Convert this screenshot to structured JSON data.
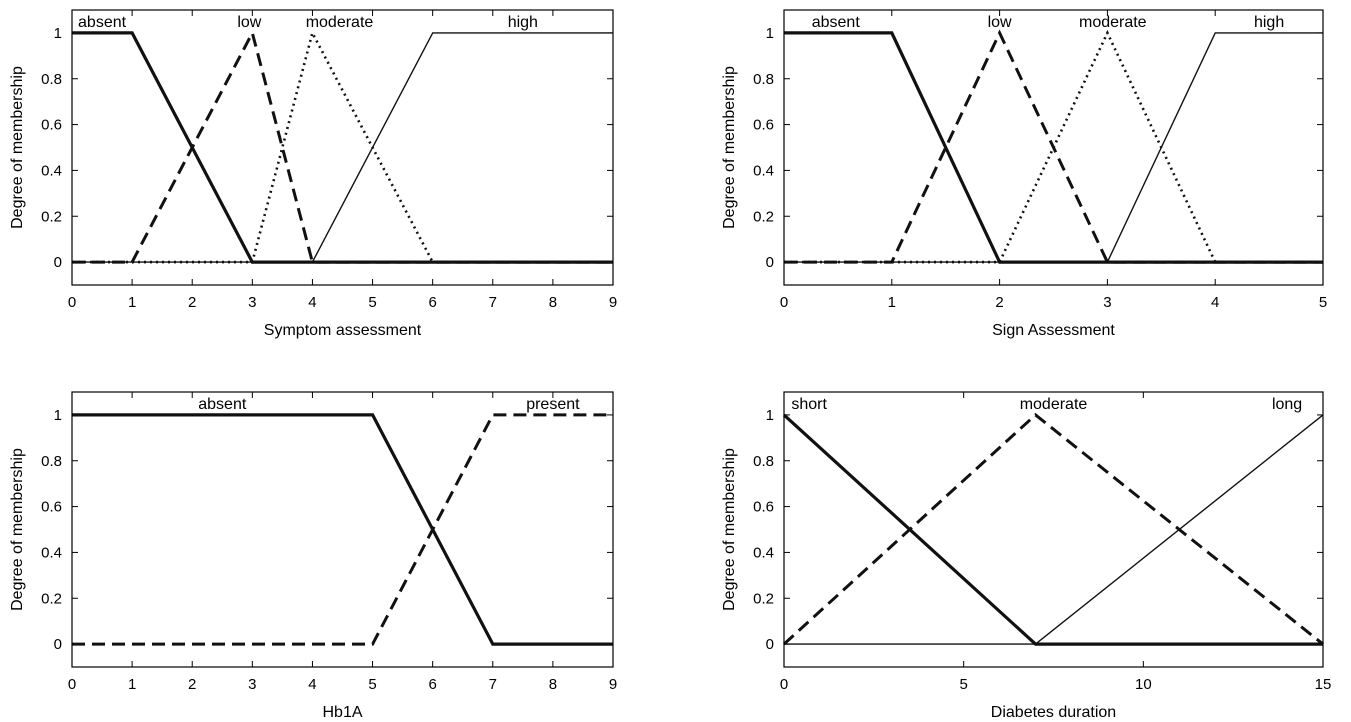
{
  "chart_data": [
    {
      "type": "line",
      "xlabel": "Symptom assessment",
      "ylabel": "Degree of membership",
      "xlim": [
        0,
        9
      ],
      "ylim": [
        -0.1,
        1.1
      ],
      "xticks": [
        0,
        1,
        2,
        3,
        4,
        5,
        6,
        7,
        8,
        9
      ],
      "yticks": [
        0,
        0.2,
        0.4,
        0.6,
        0.8,
        1
      ],
      "series": [
        {
          "name": "absent",
          "style": "thick-solid",
          "x": [
            0,
            1,
            3,
            9
          ],
          "y": [
            1,
            1,
            0,
            0
          ]
        },
        {
          "name": "low",
          "style": "dashed",
          "x": [
            0,
            1,
            3,
            4,
            9
          ],
          "y": [
            0,
            0,
            1,
            0,
            0
          ]
        },
        {
          "name": "moderate",
          "style": "dotted",
          "x": [
            0,
            3,
            4,
            6,
            9
          ],
          "y": [
            0,
            0,
            1,
            0,
            0
          ]
        },
        {
          "name": "high",
          "style": "thin-solid",
          "x": [
            0,
            4,
            6,
            9
          ],
          "y": [
            0,
            0,
            1,
            1
          ]
        }
      ],
      "set_labels": [
        {
          "text": "absent",
          "x": 0.5
        },
        {
          "text": "low",
          "x": 2.95
        },
        {
          "text": "moderate",
          "x": 4.45
        },
        {
          "text": "high",
          "x": 7.5
        }
      ]
    },
    {
      "type": "line",
      "xlabel": "Sign Assessment",
      "ylabel": "Degree of membership",
      "xlim": [
        0,
        5
      ],
      "ylim": [
        -0.1,
        1.1
      ],
      "xticks": [
        0,
        1,
        2,
        3,
        4,
        5
      ],
      "yticks": [
        0,
        0.2,
        0.4,
        0.6,
        0.8,
        1
      ],
      "series": [
        {
          "name": "absent",
          "style": "thick-solid",
          "x": [
            0,
            1,
            2,
            5
          ],
          "y": [
            1,
            1,
            0,
            0
          ]
        },
        {
          "name": "low",
          "style": "dashed",
          "x": [
            0,
            1,
            2,
            3,
            5
          ],
          "y": [
            0,
            0,
            1,
            0,
            0
          ]
        },
        {
          "name": "moderate",
          "style": "dotted",
          "x": [
            0,
            2,
            3,
            4,
            5
          ],
          "y": [
            0,
            0,
            1,
            0,
            0
          ]
        },
        {
          "name": "high",
          "style": "thin-solid",
          "x": [
            0,
            3,
            4,
            5
          ],
          "y": [
            0,
            0,
            1,
            1
          ]
        }
      ],
      "set_labels": [
        {
          "text": "absent",
          "x": 0.48
        },
        {
          "text": "low",
          "x": 2.0
        },
        {
          "text": "moderate",
          "x": 3.05
        },
        {
          "text": "high",
          "x": 4.5
        }
      ]
    },
    {
      "type": "line",
      "xlabel": "Hb1A",
      "ylabel": "Degree of membership",
      "xlim": [
        0,
        9
      ],
      "ylim": [
        -0.1,
        1.1
      ],
      "xticks": [
        0,
        1,
        2,
        3,
        4,
        5,
        6,
        7,
        8,
        9
      ],
      "yticks": [
        0,
        0.2,
        0.4,
        0.6,
        0.8,
        1
      ],
      "series": [
        {
          "name": "absent",
          "style": "thick-solid",
          "x": [
            0,
            5,
            7,
            9
          ],
          "y": [
            1,
            1,
            0,
            0
          ]
        },
        {
          "name": "present",
          "style": "dashed",
          "x": [
            0,
            5,
            7,
            9
          ],
          "y": [
            0,
            0,
            1,
            1
          ]
        }
      ],
      "set_labels": [
        {
          "text": "absent",
          "x": 2.5
        },
        {
          "text": "present",
          "x": 8.0
        }
      ]
    },
    {
      "type": "line",
      "xlabel": "Diabetes duration",
      "ylabel": "Degree of membership",
      "xlim": [
        0,
        15
      ],
      "ylim": [
        -0.1,
        1.1
      ],
      "xticks": [
        0,
        5,
        10,
        15
      ],
      "yticks": [
        0,
        0.2,
        0.4,
        0.6,
        0.8,
        1
      ],
      "series": [
        {
          "name": "short",
          "style": "thick-solid",
          "x": [
            0,
            7,
            15
          ],
          "y": [
            1,
            0,
            0
          ]
        },
        {
          "name": "moderate",
          "style": "dashed",
          "x": [
            0,
            7,
            15
          ],
          "y": [
            0,
            1,
            0
          ]
        },
        {
          "name": "long",
          "style": "thin-solid",
          "x": [
            0,
            7,
            15
          ],
          "y": [
            0,
            0,
            1
          ]
        }
      ],
      "set_labels": [
        {
          "text": "short",
          "x": 0.7
        },
        {
          "text": "moderate",
          "x": 7.5
        },
        {
          "text": "long",
          "x": 14.0
        }
      ]
    }
  ]
}
